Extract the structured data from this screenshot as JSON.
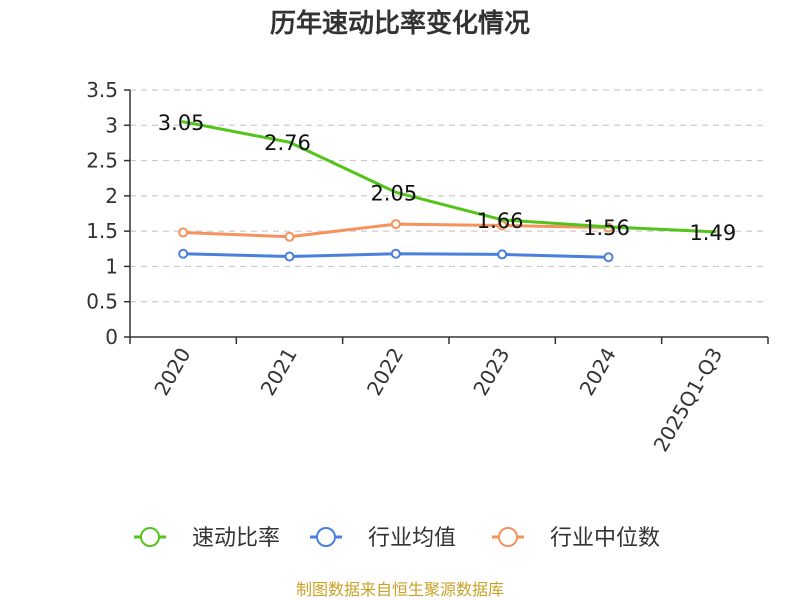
{
  "chart_data": {
    "type": "line",
    "title": "历年速动比率变化情况",
    "categories": [
      "2020",
      "2021",
      "2022",
      "2023",
      "2024",
      "2025Q1-Q3"
    ],
    "ylim": [
      0,
      3.5
    ],
    "yticks": [
      "0",
      "0.5",
      "1",
      "1.5",
      "2",
      "2.5",
      "3",
      "3.5"
    ],
    "grid": true,
    "legend_position": "bottom",
    "series": [
      {
        "name": "速动比率",
        "color": "#52c41a",
        "values": [
          3.05,
          2.76,
          2.05,
          1.66,
          1.56,
          1.49
        ],
        "labels": [
          "3.05",
          "2.76",
          "2.05",
          "1.66",
          "1.56",
          "1.49"
        ],
        "show_labels": true,
        "markers": false
      },
      {
        "name": "行业均值",
        "color": "#4a7fdb",
        "values": [
          1.18,
          1.14,
          1.18,
          1.17,
          1.13,
          null
        ],
        "show_labels": false,
        "markers": true
      },
      {
        "name": "行业中位数",
        "color": "#f5925e",
        "values": [
          1.48,
          1.42,
          1.6,
          1.58,
          1.55,
          null
        ],
        "show_labels": false,
        "markers": true
      }
    ],
    "source": "制图数据来自恒生聚源数据库"
  }
}
